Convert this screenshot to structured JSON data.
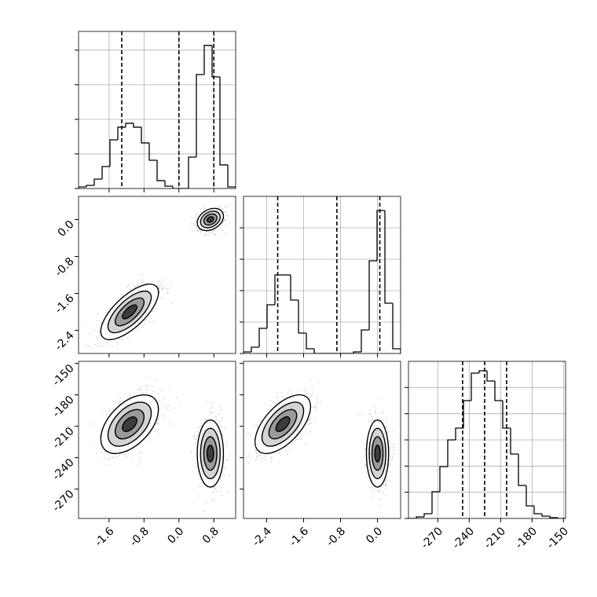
{
  "chart_data": {
    "type": "corner",
    "grid": true,
    "color": "#000000",
    "params": [
      {
        "lim": [
          -2.3,
          1.3
        ],
        "ticks": [
          -1.6,
          -0.8,
          {
            "value": 0,
            "label": "0.0"
          },
          0.8
        ]
      },
      {
        "lim": [
          -2.9,
          0.5
        ],
        "ticks": [
          -2.4,
          -1.6,
          -0.8,
          {
            "value": 0,
            "label": "0.0"
          }
        ]
      },
      {
        "lim": [
          -298,
          -148
        ],
        "ticks": [
          -270,
          -240,
          -210,
          -180,
          -150
        ]
      }
    ],
    "histograms": [
      {
        "bins": [
          -2.3,
          -2.12,
          -1.94,
          -1.76,
          -1.58,
          -1.4,
          -1.22,
          -1.04,
          -0.86,
          -0.68,
          -0.5,
          -0.32,
          -0.14,
          0.04,
          0.22,
          0.4,
          0.58,
          0.76,
          0.94,
          1.12,
          1.3
        ],
        "counts": [
          23,
          45,
          136,
          318,
          704,
          886,
          943,
          886,
          659,
          409,
          114,
          34,
          0,
          0,
          454,
          1647,
          2068,
          1613,
          341,
          23
        ],
        "ylim": [
          0,
          2270
        ],
        "yticks": [
          0,
          500,
          1000,
          1500,
          2000
        ],
        "quantiles": [
          -1.31,
          0.0,
          0.8
        ]
      },
      {
        "bins": [
          -2.9,
          -2.73,
          -2.56,
          -2.39,
          -2.22,
          -2.05,
          -1.88,
          -1.71,
          -1.54,
          -1.37,
          -1.2,
          -1.03,
          -0.86,
          -0.69,
          -0.52,
          -0.35,
          -0.18,
          -0.01,
          0.16,
          0.33,
          0.5
        ],
        "counts": [
          25,
          100,
          400,
          775,
          1250,
          1250,
          850,
          325,
          75,
          0,
          0,
          0,
          0,
          0,
          25,
          375,
          1475,
          2275,
          800,
          75
        ],
        "ylim": [
          0,
          2500
        ],
        "yticks": [
          0,
          500,
          1000,
          1500,
          2000
        ],
        "quantiles": [
          -2.16,
          -0.88,
          0.05
        ]
      },
      {
        "bins": [
          -298,
          -290.5,
          -283,
          -275.5,
          -268,
          -260.5,
          -253,
          -245.5,
          -238,
          -230.5,
          -223,
          -215.5,
          -208,
          -200.5,
          -193,
          -185.5,
          -178,
          -170.5,
          -163,
          -155.5,
          -148
        ],
        "counts": [
          0,
          30,
          90,
          510,
          990,
          1500,
          1725,
          2250,
          2775,
          2820,
          2625,
          2250,
          1725,
          1230,
          630,
          240,
          90,
          45,
          15,
          0
        ],
        "ylim": [
          0,
          3000
        ],
        "yticks": [
          0,
          500,
          1000,
          1500,
          2000,
          2500
        ],
        "quantiles": [
          -246.3,
          -225.3,
          -204.3
        ]
      }
    ],
    "panels": [
      [
        [
          {
            "mean": [
              -1.13,
              -2.0
            ],
            "sd": [
              0.33,
              0.3
            ],
            "corr": 0.7
          },
          {
            "mean": [
              0.72,
              0.0
            ],
            "sd": [
              0.15,
              0.12
            ],
            "corr": 0.3
          }
        ]
      ],
      [
        [
          {
            "mean": [
              -1.13,
              -208
            ],
            "sd": [
              0.33,
              14
            ],
            "corr": 0.5
          },
          {
            "mean": [
              0.72,
              -236
            ],
            "sd": [
              0.15,
              16
            ],
            "corr": 0.0
          }
        ],
        [
          {
            "mean": [
              -2.05,
              -208
            ],
            "sd": [
              0.3,
              14
            ],
            "corr": 0.6
          },
          {
            "mean": [
              0.0,
              -236
            ],
            "sd": [
              0.12,
              16
            ],
            "corr": 0.0
          }
        ]
      ]
    ]
  }
}
